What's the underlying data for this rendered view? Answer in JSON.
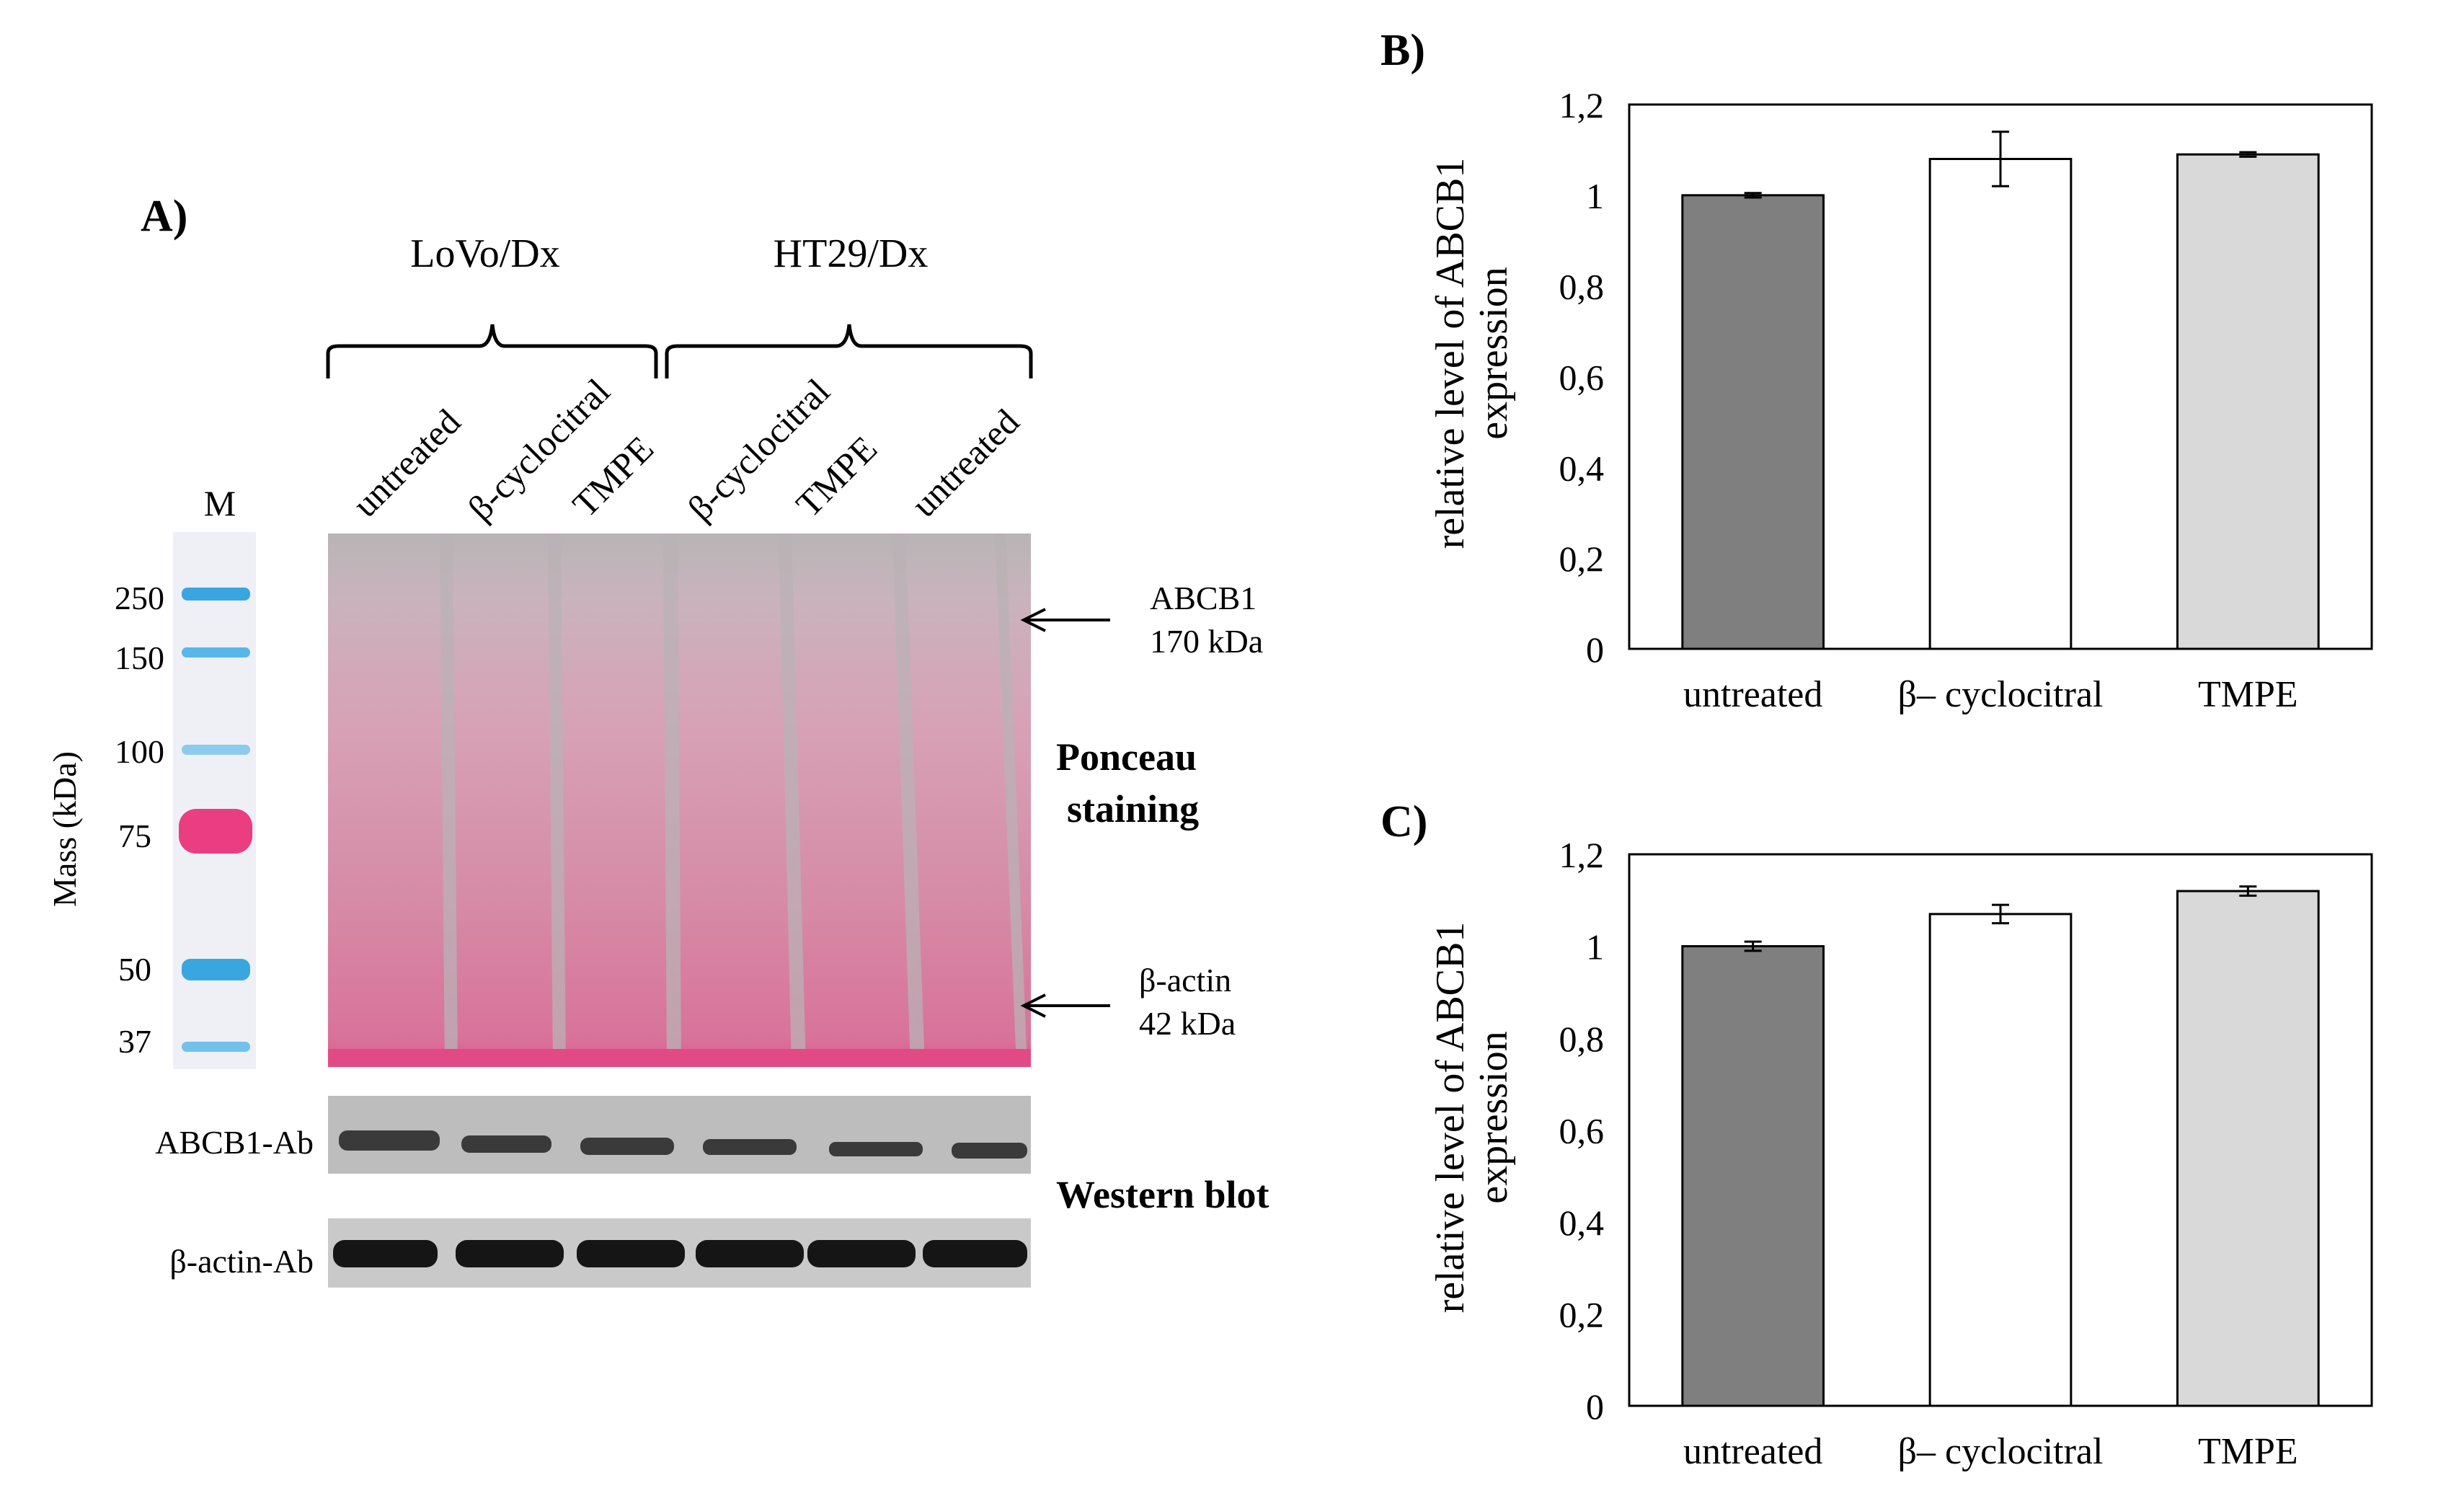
{
  "panel_a": {
    "label": "A)",
    "group_lovo": "LoVo/Dx",
    "group_ht29": "HT29/Dx",
    "lanes": [
      "untreated",
      "β-cyclocitral",
      "TMPE",
      "β-cyclocitral",
      "TMPE",
      "untreated"
    ],
    "marker_label": "M",
    "mass_axis_label": "Mass (kDa)",
    "marker_masses": [
      "250",
      "150",
      "100",
      "75",
      "50",
      "37"
    ],
    "abcb1_label": "ABCB1",
    "abcb1_mass": "170 kDa",
    "actin_label": "β-actin",
    "actin_mass": "42 kDa",
    "ponceau_line1": "Ponceau",
    "ponceau_line2": "staining",
    "western_label": "Western blot",
    "ab1_label": "ABCB1-Ab",
    "ab2_label": "β-actin-Ab",
    "colors": {
      "ponceau": "#d97a99",
      "marker_blue": "#3aa6e0",
      "marker_pink": "#ea3d82",
      "blot": "#2a2a2a"
    }
  },
  "chart_data": [
    {
      "panel": "B)",
      "type": "bar",
      "ylabel_line1": "relative level of ABCB1",
      "ylabel_line2": "expression",
      "categories": [
        "untreated",
        "β– cyclocitral",
        "TMPE"
      ],
      "values": [
        1.0,
        1.08,
        1.09
      ],
      "errors": [
        0.005,
        0.06,
        0.005
      ],
      "colors": [
        "#7f7f7f",
        "#ffffff",
        "#d9d9d9"
      ],
      "ylim": [
        0,
        1.2
      ],
      "yticks": [
        "0",
        "0,2",
        "0,4",
        "0,6",
        "0,8",
        "1",
        "1,2"
      ]
    },
    {
      "panel": "C)",
      "type": "bar",
      "ylabel_line1": "relative level of ABCB1",
      "ylabel_line2": "expression",
      "categories": [
        "untreated",
        "β– cyclocitral",
        "TMPE"
      ],
      "values": [
        1.0,
        1.07,
        1.12
      ],
      "errors": [
        0.01,
        0.02,
        0.01
      ],
      "colors": [
        "#7f7f7f",
        "#ffffff",
        "#d9d9d9"
      ],
      "ylim": [
        0,
        1.2
      ],
      "yticks": [
        "0",
        "0,2",
        "0,4",
        "0,6",
        "0,8",
        "1",
        "1,2"
      ]
    }
  ]
}
